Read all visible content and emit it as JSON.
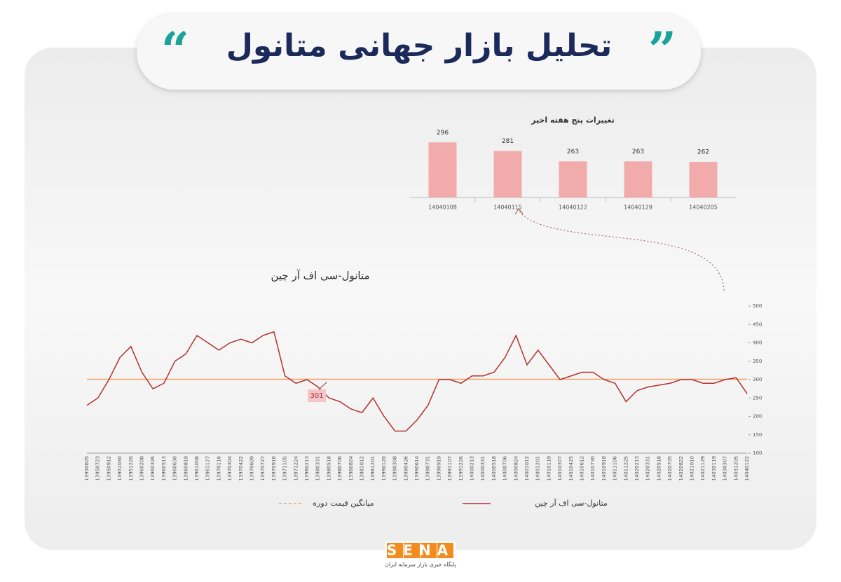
{
  "header": {
    "title": "تحلیل بازار جهانی متانول"
  },
  "chart_data": [
    {
      "type": "bar",
      "title": "تغییرات پنج هفته اخیر",
      "categories": [
        "14040108",
        "14040115",
        "14040122",
        "14040129",
        "14040205"
      ],
      "values": [
        296,
        281,
        263,
        263,
        262
      ],
      "color": "#f2abab",
      "ylim": [
        200,
        300
      ]
    },
    {
      "type": "line",
      "title": "متانول-سی اف آر چین",
      "categories": [
        "13950605",
        "13950723",
        "13950912",
        "13951030",
        "13951220",
        "13960208",
        "13960326",
        "13960513",
        "13960630",
        "13960819",
        "13961008",
        "13961127",
        "13970116",
        "13970304",
        "13970422",
        "13970609",
        "13970727",
        "13970916",
        "13971105",
        "13971224",
        "13980213",
        "13980331",
        "13980518",
        "13980706",
        "13980824",
        "13981012",
        "13981201",
        "13990120",
        "13990308",
        "13990426",
        "13990614",
        "13990731",
        "13990919",
        "13991107",
        "13991226",
        "14000213",
        "14000331",
        "14000518",
        "14000706",
        "14000824",
        "14001012",
        "14001201",
        "14010119",
        "14010307",
        "14010425",
        "14010612",
        "14010730",
        "14010918",
        "14011106",
        "14011225",
        "14020213",
        "14020331",
        "14020518",
        "14020705",
        "14020822",
        "14021010",
        "14021129",
        "14030119",
        "14030307",
        "14031205",
        "14040122"
      ],
      "series": [
        {
          "name": "متانول-سی اف آر چین",
          "color": "#b3322e",
          "values": [
            230,
            250,
            300,
            360,
            390,
            320,
            275,
            290,
            350,
            370,
            420,
            400,
            380,
            400,
            410,
            400,
            420,
            430,
            310,
            290,
            300,
            280,
            250,
            240,
            220,
            210,
            250,
            200,
            160,
            160,
            190,
            230,
            300,
            300,
            290,
            310,
            310,
            320,
            360,
            420,
            340,
            380,
            340,
            300,
            310,
            320,
            320,
            300,
            290,
            240,
            270,
            280,
            285,
            290,
            300,
            300,
            290,
            290,
            300,
            305,
            262
          ]
        }
      ],
      "reference_line": {
        "name": "میانگین قیمت دوره",
        "value": 301,
        "color": "#f0a060"
      },
      "ylim": [
        100,
        500
      ],
      "yticks": [
        100,
        150,
        200,
        250,
        300,
        350,
        400,
        450,
        500
      ]
    }
  ],
  "footer": {
    "logo": "SENA",
    "subtitle": "پایگاه خبری بازار سرمایه ایران"
  }
}
